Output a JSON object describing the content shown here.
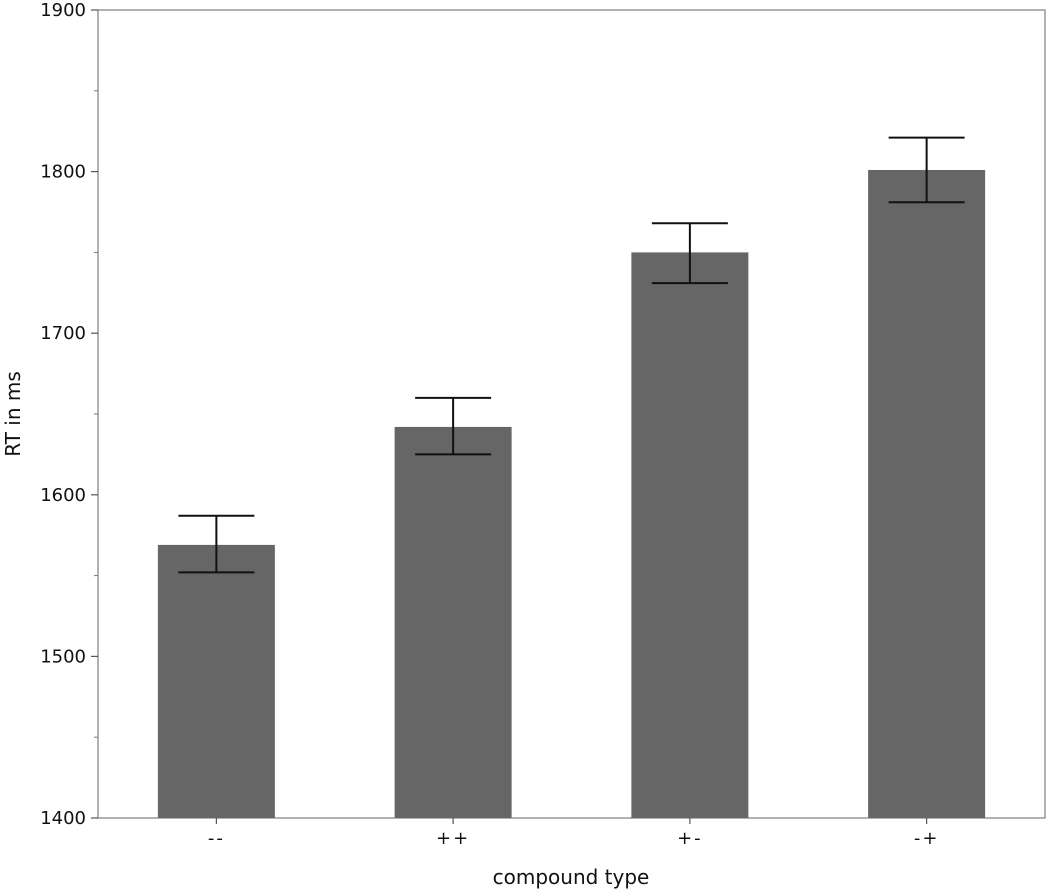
{
  "chart_data": {
    "type": "bar",
    "categories": [
      "--",
      "++",
      "+-",
      "-+"
    ],
    "values": [
      1569,
      1642,
      1750,
      1801
    ],
    "error_bars": {
      "lower": [
        1552,
        1625,
        1731,
        1781
      ],
      "upper": [
        1587,
        1660,
        1768,
        1821
      ]
    },
    "xlabel": "compound type",
    "ylabel": "RT in ms",
    "ylim": [
      1400,
      1900
    ],
    "yticks": [
      1400,
      1500,
      1600,
      1700,
      1800,
      1900
    ],
    "ytick_labels": [
      "1400",
      "1500",
      "1600",
      "1700",
      "1800",
      "1900"
    ],
    "minor_ytick_step": 50,
    "grid": false,
    "legend": "none",
    "colors": {
      "bar": "#666666",
      "error_bar": "#111111",
      "frame": "#999999"
    }
  }
}
